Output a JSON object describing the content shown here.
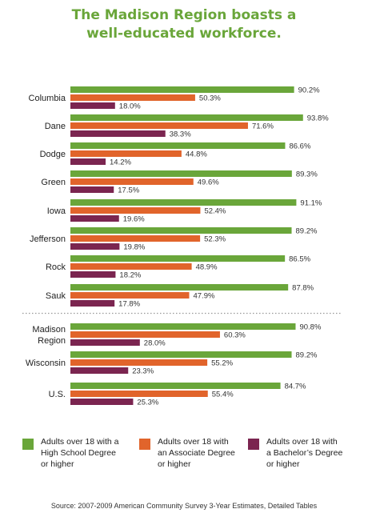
{
  "title_lines": [
    "The Madison Region boasts a",
    "well-educated workforce."
  ],
  "colors": {
    "title": "#6aa63a",
    "high_school": "#6aa63a",
    "associate": "#e1642b",
    "bachelor": "#7b2550",
    "separator": "#999999"
  },
  "chart_data": {
    "type": "bar",
    "orientation": "horizontal",
    "title": "The Madison Region boasts a well-educated workforce.",
    "categories": [
      "Columbia",
      "Dane",
      "Dodge",
      "Green",
      "Iowa",
      "Jefferson",
      "Rock",
      "Sauk",
      "Madison\nRegion",
      "Wisconsin",
      "U.S."
    ],
    "series": [
      {
        "name": "Adults over 18 with a High School Degree or higher",
        "values": [
          90.2,
          93.8,
          86.6,
          89.3,
          91.1,
          89.2,
          86.5,
          87.8,
          90.8,
          89.2,
          84.7
        ],
        "labels": [
          "90.2%",
          "93.8%",
          "86.6%",
          "89.3%",
          "91.1%",
          "89.2%",
          "86.5%",
          "87.8%",
          "90.8%",
          "89.2%",
          "84.7%"
        ]
      },
      {
        "name": "Adults over 18 with an Associate Degree or higher",
        "values": [
          50.3,
          71.6,
          44.8,
          49.6,
          52.4,
          52.3,
          48.9,
          47.9,
          60.3,
          55.2,
          55.4
        ],
        "labels": [
          "50.3%",
          "71.6%",
          "44.8%",
          "49.6%",
          "52.4%",
          "52.3%",
          "48.9%",
          "47.9%",
          "60.3%",
          "55.2%",
          "55.4%"
        ]
      },
      {
        "name": "Adults over 18 with a Bachelor’s Degree or higher",
        "values": [
          18.0,
          38.3,
          14.2,
          17.5,
          19.6,
          19.8,
          18.2,
          17.8,
          28.0,
          23.3,
          25.3
        ],
        "labels": [
          "18.0%",
          "38.3%",
          "14.2%",
          "17.5%",
          "19.6%",
          "19.8%",
          "18.2%",
          "17.8%",
          "28.0%",
          "23.3%",
          "25.3%"
        ]
      }
    ],
    "xlim": [
      0,
      100
    ],
    "grid": false,
    "separator_after_category": "Sauk",
    "legend_position": "bottom"
  },
  "legend": [
    {
      "text": "Adults over 18 with a\nHigh School Degree\nor higher",
      "color": "#6aa63a"
    },
    {
      "text": "Adults over 18 with\nan Associate Degree\nor higher",
      "color": "#e1642b"
    },
    {
      "text": "Adults over 18 with\na Bachelor’s Degree\nor higher",
      "color": "#7b2550"
    }
  ],
  "source": "Source:  2007-2009 American Community Survey 3-Year Estimates, Detailed Tables"
}
